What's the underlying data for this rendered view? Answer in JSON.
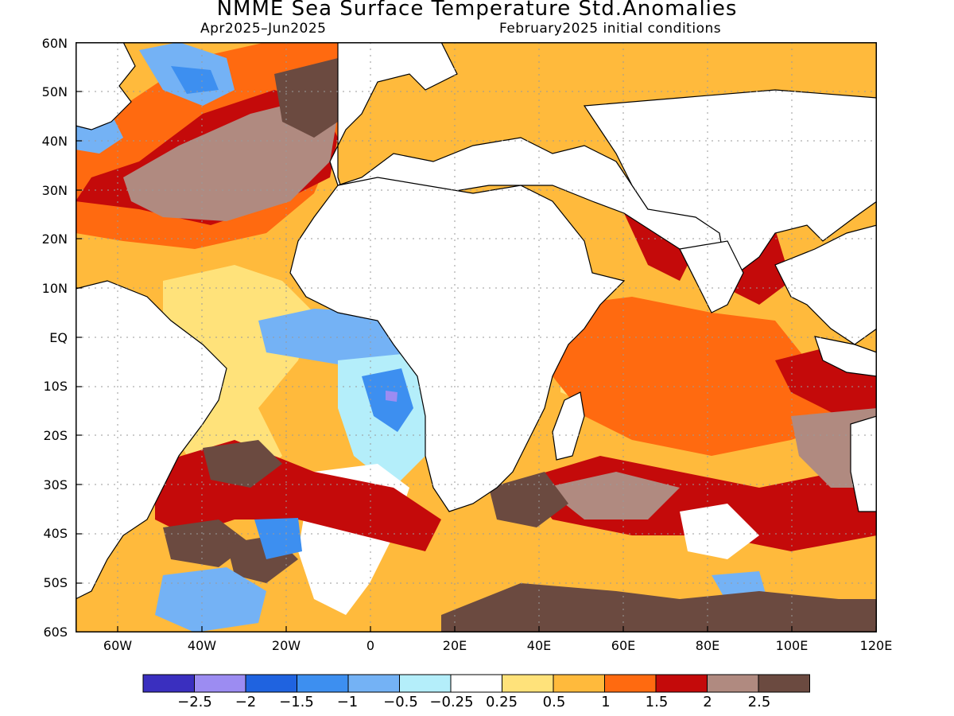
{
  "header": {
    "title": "NMME Sea Surface Temperature Std.Anomalies",
    "valid_period": "Apr2025–Jun2025",
    "initial_conditions": "February2025 initial conditions"
  },
  "axes": {
    "lat_labels": [
      "60N",
      "50N",
      "40N",
      "30N",
      "20N",
      "10N",
      "EQ",
      "10S",
      "20S",
      "30S",
      "40S",
      "50S",
      "60S"
    ],
    "lon_labels": [
      "60W",
      "40W",
      "20W",
      "0",
      "20E",
      "40E",
      "60E",
      "80E",
      "100E",
      "120E"
    ]
  },
  "colorbar": {
    "labels": [
      "−2.5",
      "−2",
      "−1.5",
      "−1",
      "−0.5",
      "−0.25",
      "0.25",
      "0.5",
      "1",
      "1.5",
      "2",
      "2.5"
    ],
    "colors": [
      "#3a2fbf",
      "#9c8cf2",
      "#1f63e0",
      "#3d8ff0",
      "#74b2f5",
      "#b4eefa",
      "#ffffff",
      "#ffe27a",
      "#ffba3c",
      "#ff6a10",
      "#c40a0a",
      "#b08a80",
      "#6b4a40"
    ]
  },
  "map_colors": {
    "ocean_base": "#ffba3c",
    "land": "#ffffff",
    "coast": "#000000",
    "grid": "#9a9a9a"
  }
}
